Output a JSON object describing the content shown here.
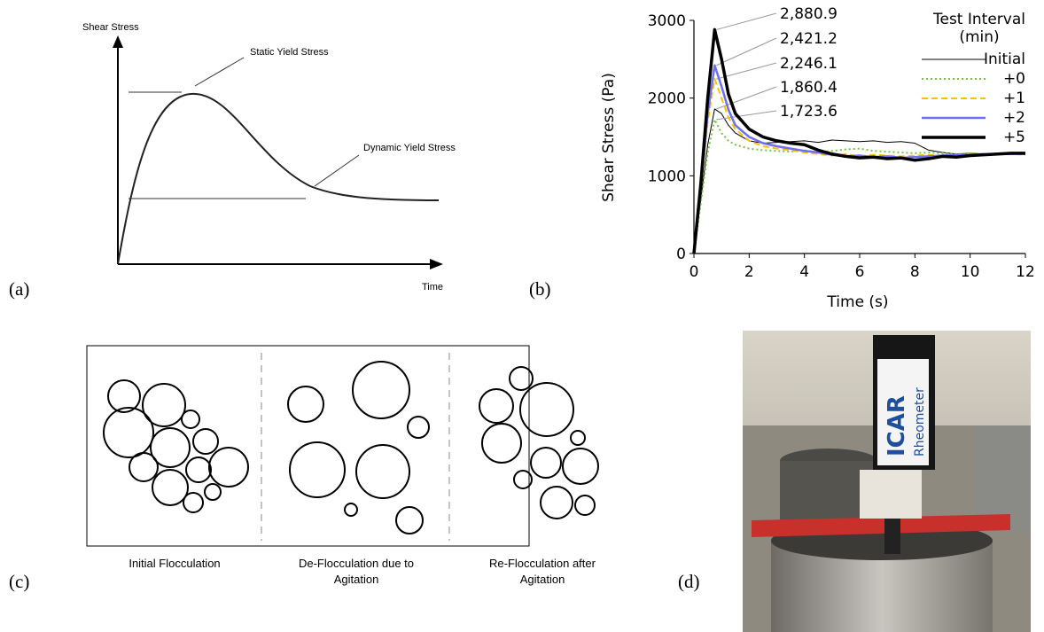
{
  "panel_labels": [
    "(a)",
    "(b)",
    "(c)",
    "(d)"
  ],
  "diagram_a": {
    "y_label": "Shear Stress",
    "x_label": "Time",
    "annotations": [
      "Static Yield Stress",
      "Dynamic Yield Stress"
    ]
  },
  "chart_data": {
    "type": "line",
    "x_label": "Time (s)",
    "y_label": "Shear Stress (Pa)",
    "legend_title_lines": [
      "Test Interval",
      "(min)"
    ],
    "xlim": [
      0,
      12
    ],
    "xticks": [
      0,
      2,
      4,
      6,
      8,
      10,
      12
    ],
    "ylim": [
      0,
      3000
    ],
    "yticks": [
      0,
      1000,
      2000,
      3000
    ],
    "x": [
      0,
      0.25,
      0.5,
      0.75,
      1,
      1.25,
      1.5,
      2,
      2.5,
      3,
      3.5,
      4,
      4.5,
      5,
      5.5,
      6,
      6.5,
      7,
      7.5,
      8,
      8.5,
      9,
      9.5,
      10,
      10.5,
      11,
      11.5,
      12
    ],
    "series": [
      {
        "name": "Initial",
        "color": "#000000",
        "width": 1,
        "dash": "none",
        "peak": {
          "value": 1860.4,
          "label": "1,860.4"
        },
        "values": [
          0,
          700,
          1400,
          1860.4,
          1800,
          1650,
          1550,
          1450,
          1420,
          1430,
          1440,
          1450,
          1430,
          1460,
          1450,
          1440,
          1450,
          1430,
          1440,
          1420,
          1330,
          1300,
          1280,
          1290,
          1280,
          1290,
          1300,
          1300
        ]
      },
      {
        "name": "+0",
        "color": "#7ac143",
        "width": 2,
        "dash": "2,3",
        "peak": {
          "value": 1723.6,
          "label": "1,723.6"
        },
        "values": [
          0,
          650,
          1300,
          1723.6,
          1550,
          1450,
          1400,
          1350,
          1330,
          1320,
          1310,
          1330,
          1300,
          1320,
          1340,
          1350,
          1320,
          1310,
          1300,
          1290,
          1300,
          1290,
          1280,
          1290,
          1280,
          1290,
          1290,
          1280
        ]
      },
      {
        "name": "+1",
        "color": "#ffc000",
        "width": 2,
        "dash": "7,4",
        "peak": {
          "value": 2246.1,
          "label": "2,246.1"
        },
        "values": [
          0,
          800,
          1700,
          2246.1,
          2000,
          1750,
          1600,
          1450,
          1380,
          1350,
          1330,
          1300,
          1280,
          1260,
          1280,
          1250,
          1270,
          1260,
          1250,
          1260,
          1270,
          1260,
          1270,
          1280,
          1270,
          1280,
          1280,
          1270
        ]
      },
      {
        "name": "+2",
        "color": "#6f6ff5",
        "width": 2.5,
        "dash": "none",
        "peak": {
          "value": 2421.2,
          "label": "2,421.2"
        },
        "values": [
          0,
          850,
          1800,
          2421.2,
          2150,
          1850,
          1650,
          1500,
          1420,
          1380,
          1350,
          1320,
          1300,
          1270,
          1250,
          1260,
          1240,
          1250,
          1230,
          1240,
          1250,
          1260,
          1270,
          1270,
          1280,
          1280,
          1280,
          1280
        ]
      },
      {
        "name": "+5",
        "color": "#000000",
        "width": 3.5,
        "dash": "none",
        "peak": {
          "value": 2880.9,
          "label": "2,880.9"
        },
        "values": [
          0,
          900,
          2000,
          2880.9,
          2500,
          2050,
          1800,
          1600,
          1500,
          1450,
          1420,
          1400,
          1330,
          1280,
          1250,
          1230,
          1240,
          1220,
          1230,
          1200,
          1220,
          1250,
          1240,
          1260,
          1270,
          1280,
          1290,
          1290
        ]
      }
    ]
  },
  "diagram_c": {
    "captions": [
      [
        "Initial Flocculation"
      ],
      [
        "De-Flocculation due to",
        "Agitation"
      ],
      [
        "Re-Flocculation after",
        "Agitation"
      ]
    ]
  },
  "photo_d": {
    "labels": [
      "ICAR",
      "Rheometer"
    ]
  }
}
